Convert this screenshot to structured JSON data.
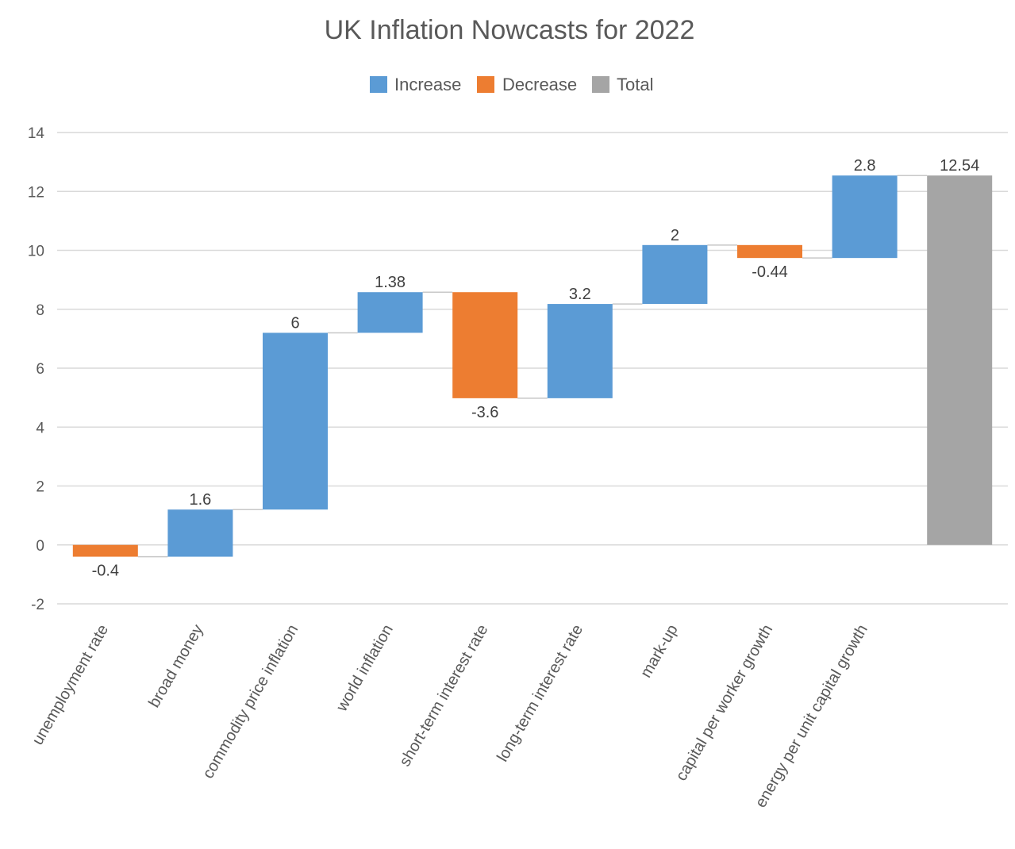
{
  "chart_data": {
    "type": "waterfall",
    "title": "UK Inflation Nowcasts for 2022",
    "legend": [
      {
        "key": "increase",
        "label": "Increase",
        "color": "#5b9bd5"
      },
      {
        "key": "decrease",
        "label": "Decrease",
        "color": "#ed7d31"
      },
      {
        "key": "total",
        "label": "Total",
        "color": "#a5a5a5"
      }
    ],
    "legend_position": "top-center",
    "categories": [
      "unemployment rate",
      "broad money",
      "commodity price inflation",
      "world inflation",
      "short-term interest rate",
      "long-term interest rate",
      "mark-up",
      "capital per worker growth",
      "energy per unit capital growth",
      ""
    ],
    "values": [
      -0.4,
      1.6,
      6,
      1.38,
      -3.6,
      3.2,
      2,
      -0.44,
      2.8,
      12.54
    ],
    "value_labels": [
      "-0.4",
      "1.6",
      "6",
      "1.38",
      "-3.6",
      "3.2",
      "2",
      "-0.44",
      "2.8",
      "12.54"
    ],
    "bar_types": [
      "decrease",
      "increase",
      "increase",
      "increase",
      "decrease",
      "increase",
      "increase",
      "decrease",
      "increase",
      "total"
    ],
    "ylim": [
      -2,
      14
    ],
    "yticks": [
      -2,
      0,
      2,
      4,
      6,
      8,
      10,
      12,
      14
    ],
    "grid": true,
    "xlabel": "",
    "ylabel": ""
  }
}
